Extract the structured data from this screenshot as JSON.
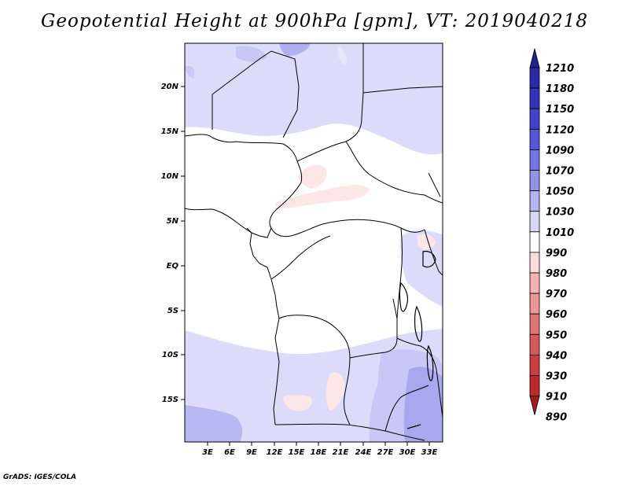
{
  "title": "Geopotential Height at 900hPa [gpm], VT: 2019040218",
  "footer": "GrADS: IGES/COLA",
  "map": {
    "lat_labels": [
      "20N",
      "15N",
      "10N",
      "5N",
      "EQ",
      "5S",
      "10S",
      "15S"
    ],
    "lon_labels": [
      "3E",
      "6E",
      "9E",
      "12E",
      "15E",
      "18E",
      "21E",
      "24E",
      "27E",
      "30E",
      "33E"
    ]
  },
  "colorbar": {
    "levels": [
      "1210",
      "1180",
      "1150",
      "1120",
      "1090",
      "1070",
      "1050",
      "1030",
      "1010",
      "990",
      "980",
      "970",
      "960",
      "950",
      "940",
      "930",
      "910",
      "890"
    ],
    "colors": [
      "#23238c",
      "#2b2ba5",
      "#3434b9",
      "#4343c9",
      "#5757d6",
      "#7474e1",
      "#9393ea",
      "#b4b4f1",
      "#d7d7f8",
      "#ffffff",
      "#fcdcdc",
      "#f5b4b4",
      "#eb9595",
      "#e07575",
      "#d55959",
      "#cc3f3f",
      "#be2a2a",
      "#a11b1b"
    ]
  }
}
